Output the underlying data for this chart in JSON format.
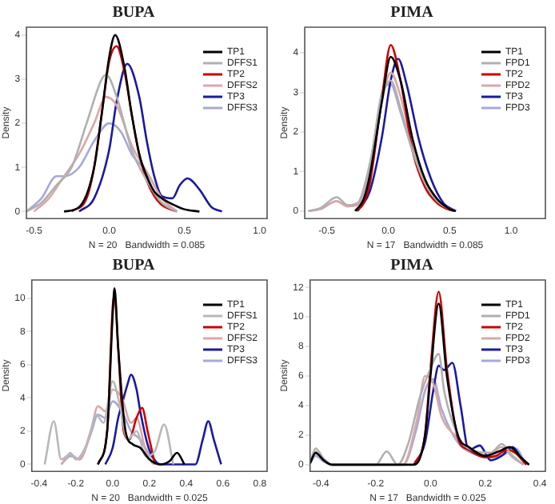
{
  "chart_data": [
    {
      "type": "line",
      "title": "BUPA",
      "xlabel": "N = 20   Bandwidth = 0.085",
      "ylabel": "Density",
      "xlim": [
        -0.55,
        1.05
      ],
      "ylim": [
        -0.16,
        4.18
      ],
      "xticks": [
        {
          "value": -0.5,
          "label": "-0.5"
        },
        {
          "value": 0,
          "label": "0.0"
        },
        {
          "value": 0.5,
          "label": "0.5"
        },
        {
          "value": 1,
          "label": "1.0"
        }
      ],
      "yticks": [
        0,
        1,
        2,
        3,
        4
      ],
      "grid": false,
      "legend": "top right",
      "marker": "none",
      "line_style": "solid",
      "series": [
        {
          "name": "TP1",
          "color": "#000000",
          "x": [
            -0.3,
            -0.2,
            -0.1,
            -0.05,
            0,
            0.04,
            0.1,
            0.15,
            0.2,
            0.25,
            0.3,
            0.35,
            0.4,
            0.5,
            0.6
          ],
          "values": [
            0,
            0.1,
            1.0,
            2.2,
            3.5,
            4.0,
            3.3,
            2.2,
            1.3,
            0.8,
            0.45,
            0.3,
            0.2,
            0.05,
            0
          ]
        },
        {
          "name": "DFFS1",
          "color": "#b0b0b0",
          "x": [
            -0.55,
            -0.45,
            -0.35,
            -0.25,
            -0.15,
            -0.05,
            -0.02,
            0.05,
            0.15,
            0.25,
            0.35,
            0.45
          ],
          "values": [
            0,
            0.2,
            0.6,
            1.0,
            2.0,
            3.0,
            3.1,
            2.6,
            1.4,
            0.7,
            0.2,
            0
          ]
        },
        {
          "name": "TP2",
          "color": "#cc0000",
          "x": [
            -0.25,
            -0.15,
            -0.1,
            -0.05,
            0,
            0.05,
            0.1,
            0.15,
            0.2,
            0.25,
            0.3,
            0.35,
            0.45
          ],
          "values": [
            0,
            0.3,
            1.0,
            2.2,
            3.4,
            3.75,
            3.2,
            2.2,
            1.3,
            0.7,
            0.35,
            0.15,
            0
          ]
        },
        {
          "name": "DFFS2",
          "color": "#d8a8a8",
          "x": [
            -0.5,
            -0.4,
            -0.3,
            -0.2,
            -0.1,
            -0.02,
            0.05,
            0.15,
            0.25,
            0.35,
            0.45
          ],
          "values": [
            0,
            0.3,
            0.8,
            1.3,
            2.0,
            2.6,
            2.4,
            1.5,
            0.9,
            0.3,
            0
          ]
        },
        {
          "name": "TP3",
          "color": "#1a1aa0",
          "x": [
            -0.2,
            -0.1,
            0,
            0.05,
            0.12,
            0.2,
            0.25,
            0.3,
            0.35,
            0.42,
            0.47,
            0.52,
            0.6,
            0.68,
            0.75
          ],
          "values": [
            0,
            0.3,
            1.4,
            2.5,
            3.35,
            2.6,
            1.6,
            0.8,
            0.35,
            0.3,
            0.6,
            0.75,
            0.5,
            0.1,
            0
          ]
        },
        {
          "name": "DFFS3",
          "color": "#a8a8d8",
          "x": [
            -0.55,
            -0.45,
            -0.35,
            -0.3,
            -0.2,
            -0.1,
            0,
            0.08,
            0.15,
            0.25,
            0.35,
            0.45
          ],
          "values": [
            0,
            0.3,
            0.8,
            0.8,
            1.0,
            1.6,
            2.0,
            1.8,
            1.3,
            0.9,
            0.3,
            0
          ]
        }
      ]
    },
    {
      "type": "line",
      "title": "PIMA",
      "xlabel": "N = 17   Bandwidth = 0.085",
      "ylabel": "Density",
      "xlim": [
        -0.68,
        1.28
      ],
      "ylim": [
        -0.19,
        4.65
      ],
      "xticks": [
        {
          "value": -0.5,
          "label": "-0.5"
        },
        {
          "value": 0,
          "label": "0.0"
        },
        {
          "value": 0.5,
          "label": "0.5"
        },
        {
          "value": 1,
          "label": "1.0"
        }
      ],
      "yticks": [
        0,
        1,
        2,
        3,
        4
      ],
      "grid": false,
      "legend": "top right",
      "marker": "none",
      "line_style": "solid",
      "series": [
        {
          "name": "TP1",
          "color": "#000000",
          "x": [
            -0.27,
            -0.2,
            -0.15,
            -0.05,
            0.02,
            0.1,
            0.2,
            0.3,
            0.4,
            0.5,
            0.55
          ],
          "values": [
            0,
            0.3,
            0.9,
            2.8,
            3.9,
            3.3,
            1.8,
            0.8,
            0.3,
            0.05,
            0
          ]
        },
        {
          "name": "FPD1",
          "color": "#b0b0b0",
          "x": [
            -0.65,
            -0.55,
            -0.42,
            -0.33,
            -0.25,
            -0.15,
            -0.05,
            0.02,
            0.1,
            0.2,
            0.3,
            0.4,
            0.5,
            0.55
          ],
          "values": [
            0,
            0.08,
            0.35,
            0.15,
            0.2,
            1.2,
            2.9,
            3.3,
            2.6,
            1.5,
            0.7,
            0.25,
            0.05,
            0
          ]
        },
        {
          "name": "TP2",
          "color": "#cc0000",
          "x": [
            -0.26,
            -0.2,
            -0.15,
            -0.05,
            0.02,
            0.1,
            0.2,
            0.3,
            0.4,
            0.5,
            0.55
          ],
          "values": [
            0,
            0.2,
            0.7,
            2.9,
            4.2,
            3.3,
            1.5,
            0.6,
            0.2,
            0.03,
            0
          ]
        },
        {
          "name": "FPD2",
          "color": "#d8a8a8",
          "x": [
            -0.65,
            -0.55,
            -0.42,
            -0.33,
            -0.25,
            -0.15,
            -0.05,
            0.02,
            0.1,
            0.2,
            0.3,
            0.4,
            0.5,
            0.55
          ],
          "values": [
            0,
            0.06,
            0.25,
            0.12,
            0.15,
            0.9,
            2.8,
            3.5,
            2.9,
            1.6,
            0.7,
            0.25,
            0.05,
            0
          ]
        },
        {
          "name": "TP3",
          "color": "#1a1aa0",
          "x": [
            -0.25,
            -0.15,
            -0.05,
            0.02,
            0.08,
            0.15,
            0.25,
            0.35,
            0.45,
            0.55
          ],
          "values": [
            0,
            0.5,
            1.9,
            3.3,
            3.85,
            3.2,
            1.8,
            0.8,
            0.2,
            0
          ]
        },
        {
          "name": "FPD3",
          "color": "#a8a8d8",
          "x": [
            -0.65,
            -0.55,
            -0.42,
            -0.33,
            -0.25,
            -0.15,
            -0.05,
            0.02,
            0.1,
            0.2,
            0.3,
            0.4,
            0.5,
            0.55
          ],
          "values": [
            0,
            0.05,
            0.25,
            0.12,
            0.18,
            1.1,
            3.0,
            3.2,
            2.5,
            1.5,
            0.7,
            0.25,
            0.05,
            0
          ]
        }
      ]
    },
    {
      "type": "line",
      "title": "BUPA",
      "xlabel": "N = 20   Bandwidth = 0.025",
      "ylabel": "Density",
      "xlim": [
        -0.44,
        0.84
      ],
      "ylim": [
        -0.42,
        11.1
      ],
      "xticks": [
        {
          "value": -0.4,
          "label": "-0.4"
        },
        {
          "value": -0.2,
          "label": "-0.2"
        },
        {
          "value": 0,
          "label": "0.0"
        },
        {
          "value": 0.2,
          "label": "0.2"
        },
        {
          "value": 0.4,
          "label": "0.4"
        },
        {
          "value": 0.6,
          "label": "0.6"
        },
        {
          "value": 0.8,
          "label": "0.8"
        }
      ],
      "yticks": [
        0,
        2,
        4,
        6,
        8,
        10
      ],
      "grid": false,
      "legend": "top right",
      "marker": "none",
      "line_style": "solid",
      "series": [
        {
          "name": "TP1",
          "color": "#000000",
          "x": [
            -0.08,
            -0.03,
            0,
            0.01,
            0.03,
            0.07,
            0.11,
            0.15,
            0.2,
            0.26,
            0.31,
            0.35,
            0.39
          ],
          "values": [
            0,
            2,
            9,
            10.6,
            7,
            2,
            1.2,
            1.0,
            0.3,
            0,
            0.2,
            0.7,
            0
          ]
        },
        {
          "name": "DFFS1",
          "color": "#b8b8b8",
          "x": [
            -0.37,
            -0.32,
            -0.28,
            -0.25,
            -0.23,
            -0.2,
            -0.13,
            -0.09,
            -0.05,
            0,
            0.04,
            0.08,
            0.13,
            0.18,
            0.23,
            0.28,
            0.33
          ],
          "values": [
            0,
            2.6,
            0.3,
            0.5,
            0.7,
            0.3,
            1.5,
            3.0,
            2.5,
            5.0,
            3.5,
            1.5,
            2.0,
            0.5,
            0.8,
            2.4,
            0
          ]
        },
        {
          "name": "TP2",
          "color": "#cc0000",
          "x": [
            -0.08,
            -0.03,
            0,
            0.01,
            0.03,
            0.06,
            0.09,
            0.13,
            0.16,
            0.19,
            0.23
          ],
          "values": [
            0,
            2,
            9.5,
            10.2,
            7,
            2,
            1.5,
            2.8,
            3.4,
            2.0,
            0
          ]
        },
        {
          "name": "DFFS2",
          "color": "#d8a8a8",
          "x": [
            -0.28,
            -0.23,
            -0.18,
            -0.12,
            -0.08,
            -0.04,
            0,
            0.05,
            0.1,
            0.13,
            0.18,
            0.22
          ],
          "values": [
            0,
            0.6,
            0.3,
            2.0,
            3.5,
            3.2,
            4.5,
            4.0,
            2.5,
            2.8,
            0.8,
            0
          ]
        },
        {
          "name": "TP3",
          "color": "#1a1aa0",
          "x": [
            -0.04,
            0,
            0.03,
            0.05,
            0.08,
            0.1,
            0.13,
            0.15,
            0.19,
            0.22,
            0.26,
            0.45,
            0.49,
            0.52,
            0.55,
            0.59
          ],
          "values": [
            0,
            1.0,
            2.8,
            3.6,
            4.8,
            5.4,
            4.5,
            3.2,
            1.2,
            0.4,
            0,
            0,
            1.5,
            2.6,
            1.5,
            0
          ]
        },
        {
          "name": "DFFS3",
          "color": "#a8a8d8",
          "x": [
            -0.28,
            -0.23,
            -0.18,
            -0.12,
            -0.08,
            -0.04,
            0,
            0.05,
            0.1,
            0.15,
            0.2,
            0.25
          ],
          "values": [
            0,
            0.5,
            0.3,
            1.8,
            3.0,
            2.8,
            3.8,
            3.2,
            2.0,
            1.5,
            0.6,
            0
          ]
        }
      ]
    },
    {
      "type": "line",
      "title": "PIMA",
      "xlabel": "N = 17   Bandwidth = 0.025",
      "ylabel": "Density",
      "xlim": [
        -0.44,
        0.42
      ],
      "ylim": [
        -0.45,
        12.5
      ],
      "xticks": [
        {
          "value": -0.4,
          "label": "-0.4"
        },
        {
          "value": -0.2,
          "label": "-0.2"
        },
        {
          "value": 0,
          "label": "0.0"
        },
        {
          "value": 0.2,
          "label": "0.2"
        },
        {
          "value": 0.4,
          "label": "0.4"
        }
      ],
      "yticks": [
        0,
        2,
        4,
        6,
        8,
        10,
        12
      ],
      "grid": false,
      "legend": "top right",
      "marker": "none",
      "line_style": "solid",
      "series": [
        {
          "name": "TP1",
          "color": "#000000",
          "x": [
            -0.44,
            -0.42,
            -0.39,
            -0.36,
            -0.06,
            -0.02,
            0.0,
            0.03,
            0.06,
            0.1,
            0.14,
            0.2,
            0.25,
            0.29,
            0.33,
            0.36
          ],
          "values": [
            0.1,
            0.8,
            0.3,
            0,
            0,
            2,
            6,
            10.9,
            6,
            2,
            1.2,
            0.6,
            0.9,
            1.2,
            0.5,
            0
          ]
        },
        {
          "name": "FPD1",
          "color": "#b0b0b0",
          "x": [
            -0.44,
            -0.42,
            -0.39,
            -0.36,
            -0.2,
            -0.16,
            -0.12,
            -0.08,
            -0.04,
            0.0,
            0.03,
            0.05,
            0.1,
            0.15,
            0.22,
            0.26,
            0.3,
            0.34
          ],
          "values": [
            0.1,
            1.1,
            0.4,
            0,
            0,
            0.9,
            0,
            1.5,
            4.5,
            6.5,
            7.5,
            5,
            2,
            1.0,
            0.8,
            1.4,
            0.6,
            0
          ]
        },
        {
          "name": "TP2",
          "color": "#cc0000",
          "x": [
            -0.06,
            -0.02,
            0.0,
            0.03,
            0.06,
            0.1,
            0.14,
            0.2,
            0.24,
            0.28,
            0.31,
            0.35
          ],
          "values": [
            0,
            2,
            6.5,
            11.7,
            6.5,
            1.8,
            1.0,
            0.5,
            0.6,
            1.0,
            0.8,
            0
          ]
        },
        {
          "name": "FPD2",
          "color": "#d8a8a8",
          "x": [
            -0.44,
            -0.42,
            -0.39,
            -0.36,
            -0.1,
            -0.05,
            -0.02,
            0.01,
            0.04,
            0.1,
            0.15,
            0.22,
            0.26,
            0.3,
            0.34
          ],
          "values": [
            0.1,
            0.9,
            0.3,
            0,
            0,
            3,
            6.0,
            5.5,
            3.3,
            1.8,
            1.0,
            0.8,
            1.2,
            0.5,
            0
          ]
        },
        {
          "name": "TP3",
          "color": "#1a1aa0",
          "x": [
            -0.06,
            -0.02,
            0.01,
            0.03,
            0.05,
            0.08,
            0.11,
            0.14,
            0.18,
            0.22,
            0.26,
            0.3,
            0.33,
            0.36
          ],
          "values": [
            0,
            1.5,
            5,
            6.7,
            6.4,
            6.9,
            4,
            1,
            1.3,
            0.3,
            0.6,
            1.2,
            0.5,
            0
          ]
        },
        {
          "name": "FPD3",
          "color": "#a8a8d8",
          "x": [
            -0.44,
            -0.42,
            -0.39,
            -0.36,
            -0.1,
            -0.05,
            -0.02,
            0.01,
            0.04,
            0.1,
            0.15,
            0.22,
            0.27,
            0.31,
            0.35
          ],
          "values": [
            0.1,
            0.6,
            0.2,
            0,
            0,
            2.5,
            5.0,
            5.8,
            3.8,
            1.5,
            0.8,
            0.5,
            0.7,
            1.1,
            0
          ]
        }
      ]
    }
  ]
}
